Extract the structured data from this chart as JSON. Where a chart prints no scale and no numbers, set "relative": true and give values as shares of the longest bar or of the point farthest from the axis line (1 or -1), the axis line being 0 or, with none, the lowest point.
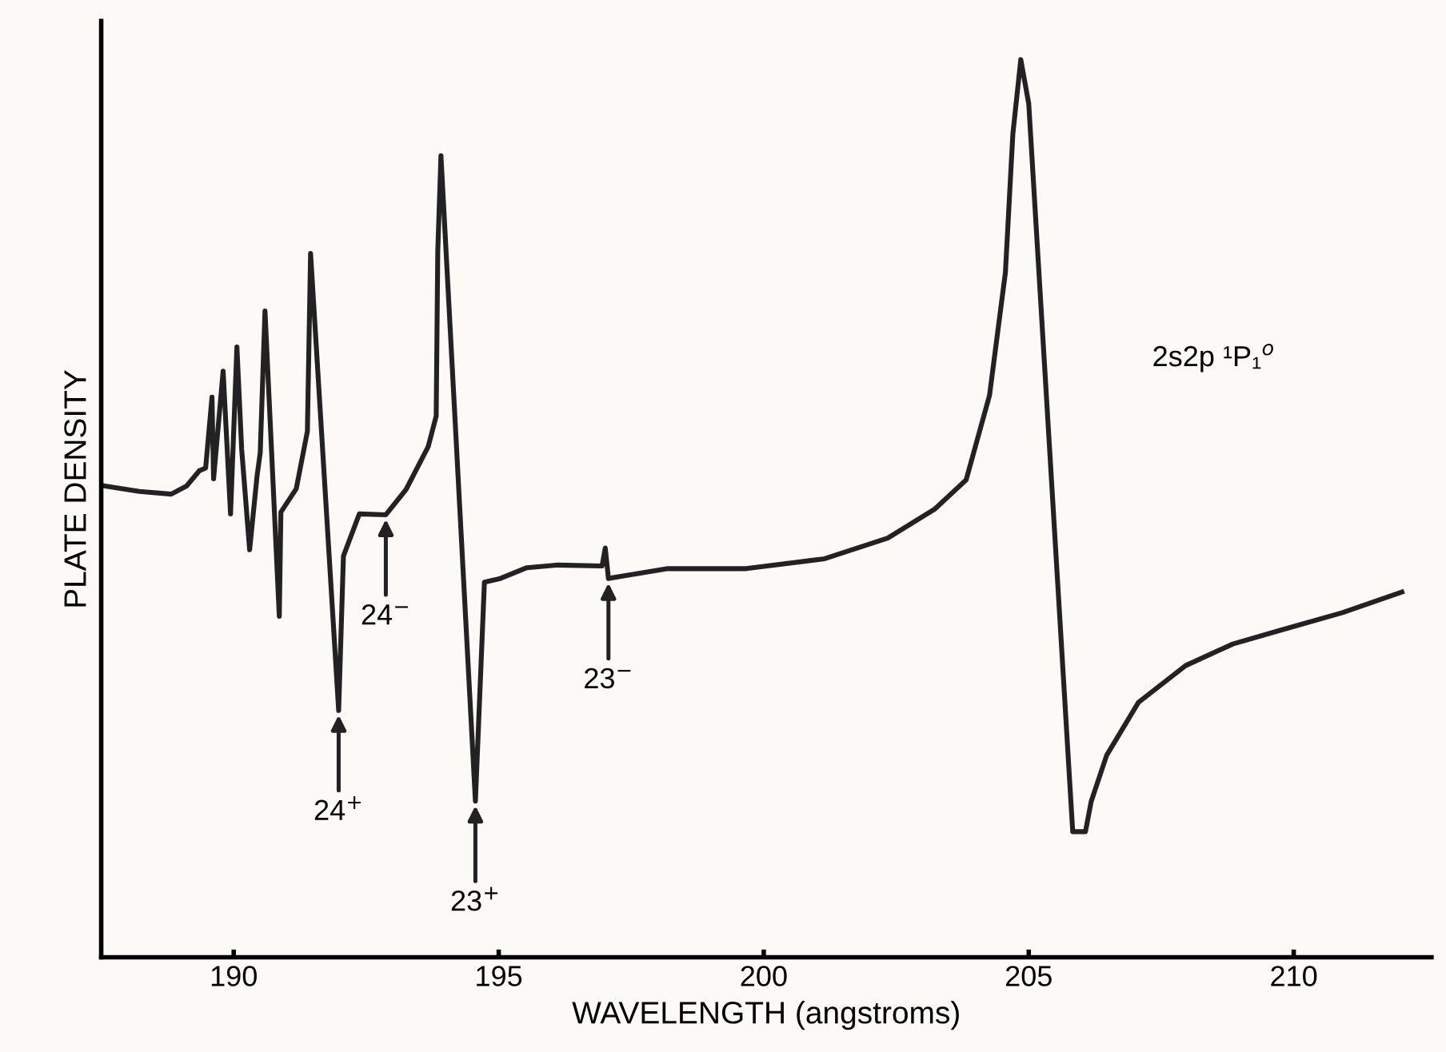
{
  "chart_data": {
    "type": "line",
    "relative": true,
    "xlabel": "WAVELENGTH (angstroms)",
    "ylabel": "PLATE DENSITY",
    "xlim": [
      187.5,
      212.6
    ],
    "xticks": [
      190,
      195,
      200,
      205,
      210
    ],
    "grid": false,
    "legend": false,
    "marker": "none",
    "line_style": "solid",
    "series": [
      {
        "color": "#222222",
        "x": [
          187.57,
          188.22,
          188.82,
          189.11,
          189.35,
          189.47,
          189.59,
          189.62,
          189.8,
          189.94,
          190.06,
          190.15,
          190.3,
          190.44,
          190.5,
          190.59,
          190.86,
          190.89,
          191.18,
          191.39,
          191.45,
          191.98,
          192.07,
          192.37,
          192.87,
          193.25,
          193.67,
          193.82,
          193.85,
          193.91,
          194.56,
          194.73,
          195.03,
          195.53,
          196.12,
          196.95,
          197.01,
          197.07,
          198.19,
          199.67,
          201.15,
          202.34,
          203.22,
          203.82,
          204.26,
          204.56,
          204.7,
          204.85,
          205.0,
          205.83,
          206.07,
          206.18,
          206.47,
          207.07,
          207.96,
          208.85,
          209.73,
          210.92,
          212.04
        ],
        "values": [
          0.525,
          0.519,
          0.516,
          0.525,
          0.542,
          0.545,
          0.624,
          0.533,
          0.653,
          0.494,
          0.68,
          0.566,
          0.454,
          0.536,
          0.562,
          0.72,
          0.38,
          0.496,
          0.522,
          0.586,
          0.784,
          0.275,
          0.447,
          0.494,
          0.493,
          0.521,
          0.569,
          0.603,
          0.787,
          0.893,
          0.174,
          0.418,
          0.422,
          0.434,
          0.437,
          0.436,
          0.456,
          0.422,
          0.433,
          0.433,
          0.444,
          0.467,
          0.499,
          0.532,
          0.626,
          0.763,
          0.917,
          1.0,
          0.951,
          0.14,
          0.14,
          0.174,
          0.225,
          0.284,
          0.325,
          0.349,
          0.364,
          0.384,
          0.407
        ]
      }
    ],
    "annotations": [
      {
        "text": "24$^{+}$",
        "x": 191.98,
        "y": 0.275
      },
      {
        "text": "24$^{−}$",
        "x": 192.87,
        "y": 0.493
      },
      {
        "text": "23$^{+}$",
        "x": 194.56,
        "y": 0.174
      },
      {
        "text": "23$^{−}$",
        "x": 197.07,
        "y": 0.422
      },
      "2s2p ¹P₁$^{o}$"
    ]
  }
}
